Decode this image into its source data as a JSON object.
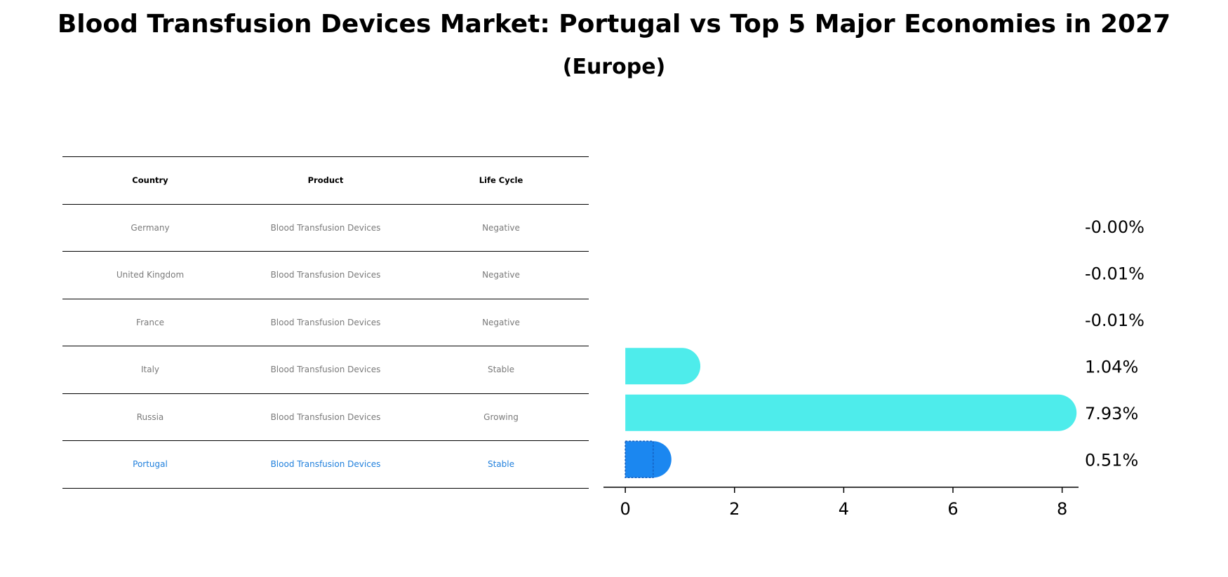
{
  "title": "Blood Transfusion Devices Market: Portugal vs Top 5 Major Economies in 2027",
  "subtitle": "(Europe)",
  "table": {
    "headers": [
      "Country",
      "Product",
      "Life Cycle"
    ],
    "rows": [
      {
        "country": "Germany",
        "product": "Blood Transfusion Devices",
        "life_cycle": "Negative"
      },
      {
        "country": "United Kingdom",
        "product": "Blood Transfusion Devices",
        "life_cycle": "Negative"
      },
      {
        "country": "France",
        "product": "Blood Transfusion Devices",
        "life_cycle": "Negative"
      },
      {
        "country": "Italy",
        "product": "Blood Transfusion Devices",
        "life_cycle": "Stable"
      },
      {
        "country": "Russia",
        "product": "Blood Transfusion Devices",
        "life_cycle": "Growing"
      },
      {
        "country": "Portugal",
        "product": "Blood Transfusion Devices",
        "life_cycle": "Stable"
      }
    ]
  },
  "chart_data": {
    "type": "bar",
    "orientation": "horizontal",
    "categories": [
      "Germany",
      "United Kingdom",
      "France",
      "Italy",
      "Russia",
      "Portugal"
    ],
    "values": [
      -0.0,
      -0.01,
      -0.01,
      1.04,
      7.93,
      0.51
    ],
    "value_labels": [
      "-0.00%",
      "-0.01%",
      "-0.01%",
      "1.04%",
      "7.93%",
      "0.51%"
    ],
    "xlim": [
      -0.4,
      8.3
    ],
    "xticks": [
      0,
      2,
      4,
      6,
      8
    ],
    "highlight": "Portugal",
    "colors": {
      "default": "#4eeceb",
      "highlight": "#1b87f0",
      "table_highlight": "#1f7fdc",
      "table_text": "#7a7a7a"
    }
  }
}
